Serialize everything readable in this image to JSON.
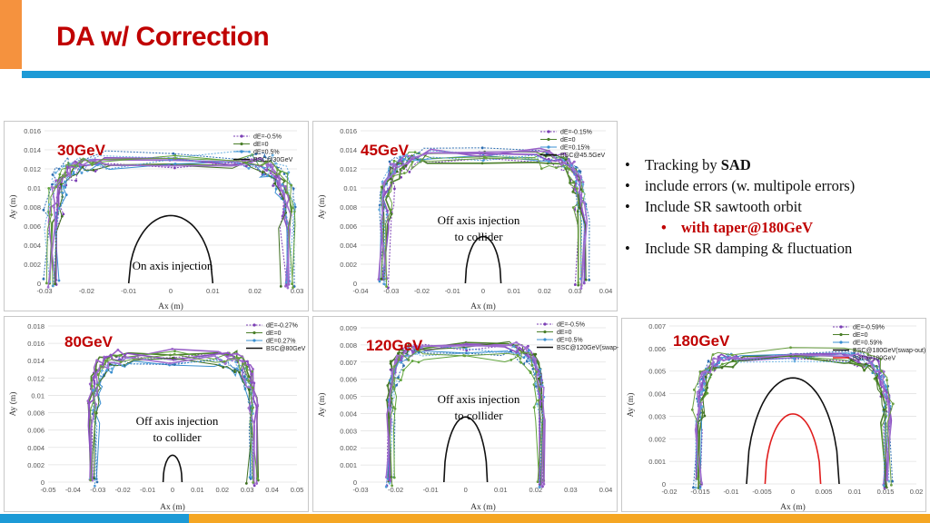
{
  "slide": {
    "title": "DA w/ Correction",
    "bullets": [
      {
        "pre": "Tracking by ",
        "bold": "SAD",
        "post": ""
      },
      {
        "pre": "include errors (w. multipole errors)",
        "bold": "",
        "post": ""
      },
      {
        "pre": "Include SR sawtooth orbit",
        "bold": "",
        "post": ""
      },
      {
        "pre": "with taper@180GeV",
        "bold": "",
        "post": "",
        "sub": true
      },
      {
        "pre": "Include SR damping & fluctuation",
        "bold": "",
        "post": ""
      }
    ],
    "bullet_glyph": "•"
  },
  "colors": {
    "accent": "#f5923e",
    "title": "#c00000",
    "bar": "#1c9ad6",
    "footer_orange": "#f5a623"
  },
  "chart_data": [
    {
      "type": "scatter",
      "title": "30GeV",
      "annotation": "On axis injection",
      "xlabel": "Ax (m)",
      "ylabel": "Ay (m)",
      "xlim": [
        -0.03,
        0.03
      ],
      "ylim": [
        0,
        0.016
      ],
      "xticks": [
        "-0.03",
        "-0.02",
        "-0.01",
        "0",
        "0.01",
        "0.02",
        "0.03"
      ],
      "yticks": [
        "0",
        "0.002",
        "0.004",
        "0.006",
        "0.008",
        "0.01",
        "0.012",
        "0.014",
        "0.016"
      ],
      "legend": [
        "dE=-0.5%",
        "dE=0",
        "dE=0.5%",
        "BSC@30GeV"
      ],
      "da_edge_x": 0.029,
      "da_peak_y": 0.0133,
      "bsc_half_width": 0.01,
      "bsc_peak": 0.0071
    },
    {
      "type": "scatter",
      "title": "45GeV",
      "annotation": "Off axis injection\nto collider",
      "xlabel": "Ax (m)",
      "ylabel": "Ay (m)",
      "xlim": [
        -0.04,
        0.04
      ],
      "ylim": [
        0,
        0.016
      ],
      "xticks": [
        "-0.04",
        "-0.03",
        "-0.02",
        "-0.01",
        "0",
        "0.01",
        "0.02",
        "0.03",
        "0.04"
      ],
      "yticks": [
        "0",
        "0.002",
        "0.004",
        "0.006",
        "0.008",
        "0.01",
        "0.012",
        "0.014",
        "0.016"
      ],
      "legend": [
        "dE=-0.15%",
        "dE=0",
        "dE=0.15%",
        "BSC@45.5GeV"
      ],
      "da_edge_x": 0.033,
      "da_peak_y": 0.0136,
      "bsc_half_width": 0.0058,
      "bsc_peak": 0.0049
    },
    {
      "type": "scatter",
      "title": "80GeV",
      "annotation": "Off axis injection\nto collider",
      "xlabel": "Ax (m)",
      "ylabel": "Ay (m)",
      "xlim": [
        -0.05,
        0.05
      ],
      "ylim": [
        0,
        0.018
      ],
      "xticks": [
        "-0.05",
        "-0.04",
        "-0.03",
        "-0.02",
        "-0.01",
        "0",
        "0.01",
        "0.02",
        "0.03",
        "0.04",
        "0.05"
      ],
      "yticks": [
        "0",
        "0.002",
        "0.004",
        "0.006",
        "0.008",
        "0.01",
        "0.012",
        "0.014",
        "0.016",
        "0.018"
      ],
      "legend": [
        "dE=-0.27%",
        "dE=0",
        "dE=0.27%",
        "BSC@80GeV"
      ],
      "da_edge_x": 0.033,
      "da_peak_y": 0.0147,
      "bsc_half_width": 0.0038,
      "bsc_peak": 0.0031
    },
    {
      "type": "scatter",
      "title": "120GeV",
      "annotation": "Off axis injection\nto collider",
      "xlabel": "Ax (m)",
      "ylabel": "Ay (m)",
      "xlim": [
        -0.03,
        0.04
      ],
      "ylim": [
        0,
        0.009
      ],
      "xticks": [
        "-0.03",
        "-0.02",
        "-0.01",
        "0",
        "0.01",
        "0.02",
        "0.03",
        "0.04"
      ],
      "yticks": [
        "0",
        "0.001",
        "0.002",
        "0.003",
        "0.004",
        "0.005",
        "0.006",
        "0.007",
        "0.008",
        "0.009"
      ],
      "legend": [
        "dE=-0.5%",
        "dE=0",
        "dE=0.5%",
        "BSC@120GeV(swap-out)"
      ],
      "da_edge_x": 0.022,
      "da_peak_y": 0.0079,
      "bsc_half_width": 0.0062,
      "bsc_peak": 0.0038
    },
    {
      "type": "scatter",
      "title": "180GeV",
      "annotation": "",
      "xlabel": "Ax (m)",
      "ylabel": "Ay (m)",
      "xlim": [
        -0.02,
        0.02
      ],
      "ylim": [
        0,
        0.007
      ],
      "xticks": [
        "-0.02",
        "-0.015",
        "-0.01",
        "-0.005",
        "0",
        "0.005",
        "0.01",
        "0.015",
        "0.02"
      ],
      "yticks": [
        "0",
        "0.001",
        "0.002",
        "0.003",
        "0.004",
        "0.005",
        "0.006",
        "0.007"
      ],
      "legend": [
        "dE=-0.59%",
        "dE=0",
        "dE=0.59%",
        "BSC@180GeV(swap-out)",
        "BSC@180GeV"
      ],
      "da_edge_x": 0.016,
      "da_peak_y": 0.0059,
      "bsc_half_width": 0.0075,
      "bsc_peak": 0.0047,
      "bsc2_half_width": 0.0045,
      "bsc2_peak": 0.0031
    }
  ]
}
